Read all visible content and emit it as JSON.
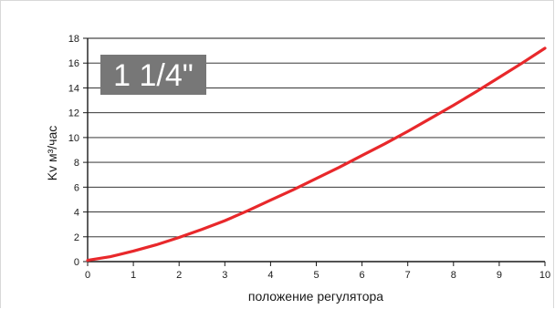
{
  "chart_data": {
    "type": "line",
    "badge": "1 1/4\"",
    "xlabel": "положение регулятора",
    "ylabel": "Kv м³/час",
    "xlim": [
      0,
      10
    ],
    "ylim": [
      0,
      18
    ],
    "x_ticks": [
      0,
      1,
      2,
      3,
      4,
      5,
      6,
      7,
      8,
      9,
      10
    ],
    "y_ticks": [
      0,
      2,
      4,
      6,
      8,
      10,
      12,
      14,
      16,
      18
    ],
    "grid": "horizontal",
    "line_color": "#e8282b",
    "badge_bg": "#777777",
    "series": [
      {
        "x": [
          0,
          0.5,
          1,
          1.5,
          2,
          2.5,
          3,
          3.5,
          4,
          4.5,
          5,
          5.5,
          6,
          6.5,
          7,
          7.5,
          8,
          8.5,
          9,
          9.5,
          10
        ],
        "values": [
          0.1,
          0.4,
          0.85,
          1.35,
          1.95,
          2.6,
          3.3,
          4.1,
          4.95,
          5.8,
          6.7,
          7.6,
          8.55,
          9.5,
          10.5,
          11.55,
          12.6,
          13.7,
          14.85,
          16.0,
          17.2
        ]
      }
    ]
  }
}
